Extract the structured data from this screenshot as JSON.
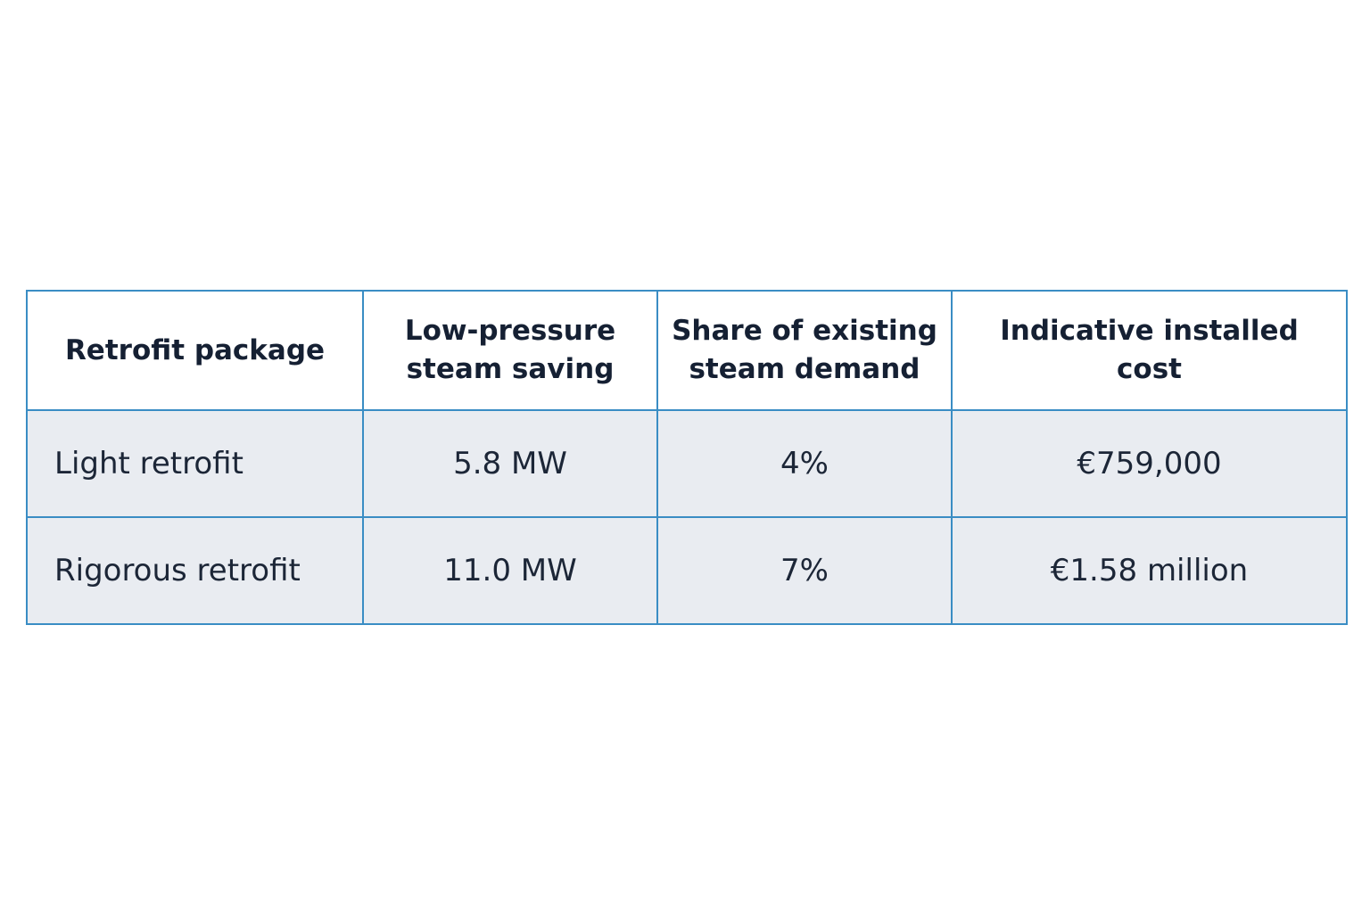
{
  "table": {
    "headers": [
      "Retrofit package",
      "Low-pressure steam saving",
      "Share of existing steam demand",
      "Indicative installed cost"
    ],
    "rows": [
      [
        "Light retrofit",
        "5.8 MW",
        "4%",
        "€759,000"
      ],
      [
        "Rigorous retrofit",
        "11.0 MW",
        "7%",
        "€1.58 million"
      ]
    ]
  },
  "colors": {
    "border": "#3a8dc4",
    "header_bg": "#ffffff",
    "row_bg": "#e9ecf1",
    "text": "#152033"
  }
}
